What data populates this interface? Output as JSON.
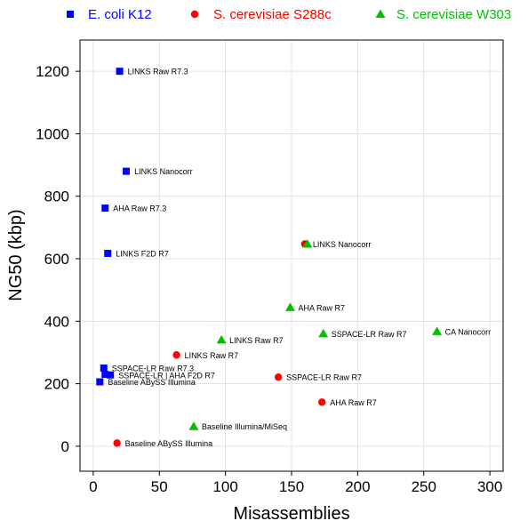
{
  "chart_data": {
    "type": "scatter",
    "title": "",
    "xlabel": "Misassemblies",
    "ylabel": "NG50 (kbp)",
    "xlim": [
      -10,
      310
    ],
    "ylim": [
      -80,
      1300
    ],
    "xticks": [
      0,
      50,
      100,
      150,
      200,
      250,
      300
    ],
    "yticks": [
      0,
      200,
      400,
      600,
      800,
      1000,
      1200
    ],
    "grid": true,
    "legend_position": "top",
    "series": [
      {
        "name": "E. coli K12",
        "marker": "square",
        "color": "#0000ff",
        "points": [
          {
            "x": 20,
            "y": 1200,
            "label": "LINKS Raw R7.3"
          },
          {
            "x": 25,
            "y": 880,
            "label": "LINKS Nanocorr"
          },
          {
            "x": 9,
            "y": 762,
            "label": "AHA Raw R7.3"
          },
          {
            "x": 11,
            "y": 617,
            "label": "LINKS F2D R7"
          },
          {
            "x": 8,
            "y": 250,
            "label": "SSPACE-LR Raw R7.3"
          },
          {
            "x": 9,
            "y": 230,
            "label": ""
          },
          {
            "x": 13,
            "y": 228,
            "label": "SSPACE-LR | AHA F2D R7"
          },
          {
            "x": 5,
            "y": 206,
            "label": "Baseline ABySS Illumina"
          }
        ]
      },
      {
        "name": "S. cerevisiae S288c",
        "marker": "circle",
        "color": "#ff0000",
        "points": [
          {
            "x": 160,
            "y": 647,
            "label": "LINKS Nanocorr"
          },
          {
            "x": 63,
            "y": 292,
            "label": "LINKS Raw R7"
          },
          {
            "x": 140,
            "y": 221,
            "label": "SSPACE-LR Raw R7"
          },
          {
            "x": 173,
            "y": 141,
            "label": "AHA Raw R7"
          },
          {
            "x": 18,
            "y": 10,
            "label": "Baseline ABySS Illumina"
          }
        ]
      },
      {
        "name": "S. cerevisiae W303",
        "marker": "triangle",
        "color": "#00c000",
        "points": [
          {
            "x": 162,
            "y": 647,
            "label": ""
          },
          {
            "x": 149,
            "y": 444,
            "label": "AHA Raw R7"
          },
          {
            "x": 97,
            "y": 340,
            "label": "LINKS Raw R7"
          },
          {
            "x": 174,
            "y": 360,
            "label": "SSPACE-LR Raw R7"
          },
          {
            "x": 260,
            "y": 367,
            "label": "CA Nanocorr"
          },
          {
            "x": 76,
            "y": 63,
            "label": "Baseline Illumina/MiSeq"
          }
        ]
      }
    ]
  }
}
